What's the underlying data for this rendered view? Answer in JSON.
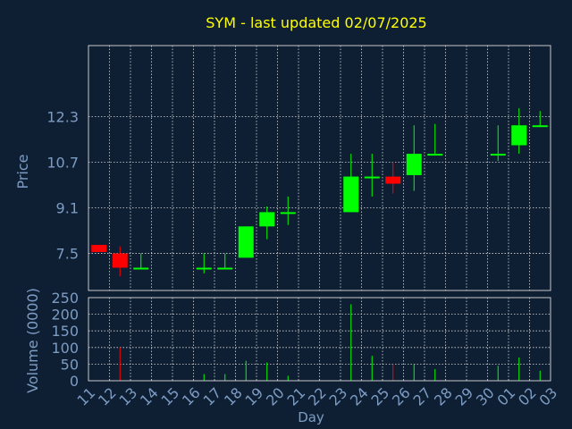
{
  "chart_data": {
    "type": "candlestick",
    "title": "SYM - last updated 02/07/2025",
    "xlabel": "Day",
    "price_ylabel": "Price",
    "volume_ylabel": "Volume (0000)",
    "price_ylim": [
      6.2,
      14.8
    ],
    "volume_ylim": [
      0,
      250
    ],
    "price_ticks": [
      "7.5",
      "9.1",
      "10.7",
      "12.3"
    ],
    "volume_ticks": [
      "0",
      "50",
      "100",
      "150",
      "200",
      "250"
    ],
    "x_labels": [
      "11",
      "12",
      "13",
      "14",
      "15",
      "16",
      "17",
      "18",
      "19",
      "20",
      "21",
      "22",
      "23",
      "24",
      "25",
      "26",
      "27",
      "28",
      "29",
      "30",
      "01",
      "02",
      "03"
    ],
    "grid": true,
    "colors": {
      "background": "#0e1f33",
      "title": "#ffff00",
      "axis_text": "#7d9cc4",
      "up": "#00ff00",
      "down": "#ff0000",
      "frame": "#c8c8c8",
      "grid": "#d9d9d9"
    },
    "candles": [
      {
        "day": 0,
        "open": 7.8,
        "close": 7.55,
        "high": 7.8,
        "low": 7.55
      },
      {
        "day": 1,
        "open": 7.5,
        "close": 7.0,
        "high": 7.75,
        "low": 6.7
      },
      {
        "day": 2,
        "open": 7.0,
        "close": 7.0,
        "high": 7.5,
        "low": 7.0
      },
      {
        "day": 5,
        "open": 7.0,
        "close": 7.0,
        "high": 7.5,
        "low": 6.8
      },
      {
        "day": 6,
        "open": 7.0,
        "close": 7.0,
        "high": 7.5,
        "low": 7.0
      },
      {
        "day": 7,
        "open": 7.35,
        "close": 8.45,
        "high": 8.45,
        "low": 7.35
      },
      {
        "day": 8,
        "open": 8.45,
        "close": 8.95,
        "high": 9.15,
        "low": 8.0
      },
      {
        "day": 9,
        "open": 8.95,
        "close": 8.95,
        "high": 9.5,
        "low": 8.5
      },
      {
        "day": 12,
        "open": 8.95,
        "close": 10.2,
        "high": 11.0,
        "low": 8.95
      },
      {
        "day": 13,
        "open": 10.2,
        "close": 10.2,
        "high": 11.0,
        "low": 9.5
      },
      {
        "day": 14,
        "open": 10.2,
        "close": 9.95,
        "high": 10.7,
        "low": 9.6
      },
      {
        "day": 15,
        "open": 10.25,
        "close": 11.0,
        "high": 12.0,
        "low": 9.7
      },
      {
        "day": 16,
        "open": 11.0,
        "close": 11.0,
        "high": 12.05,
        "low": 11.0
      },
      {
        "day": 19,
        "open": 11.0,
        "close": 11.0,
        "high": 12.0,
        "low": 10.75
      },
      {
        "day": 20,
        "open": 11.3,
        "close": 12.0,
        "high": 12.6,
        "low": 11.0
      },
      {
        "day": 21,
        "open": 12.0,
        "close": 12.0,
        "high": 12.5,
        "low": 11.95
      }
    ],
    "volume": [
      {
        "day": 1,
        "value": 100,
        "direction": "down"
      },
      {
        "day": 5,
        "value": 20,
        "direction": "up"
      },
      {
        "day": 6,
        "value": 20,
        "direction": "up"
      },
      {
        "day": 7,
        "value": 60,
        "direction": "up"
      },
      {
        "day": 8,
        "value": 55,
        "direction": "up"
      },
      {
        "day": 9,
        "value": 15,
        "direction": "up"
      },
      {
        "day": 12,
        "value": 230,
        "direction": "up"
      },
      {
        "day": 13,
        "value": 75,
        "direction": "up"
      },
      {
        "day": 14,
        "value": 50,
        "direction": "down"
      },
      {
        "day": 15,
        "value": 50,
        "direction": "up"
      },
      {
        "day": 16,
        "value": 35,
        "direction": "up"
      },
      {
        "day": 19,
        "value": 45,
        "direction": "up"
      },
      {
        "day": 20,
        "value": 70,
        "direction": "up"
      },
      {
        "day": 21,
        "value": 30,
        "direction": "up"
      }
    ]
  }
}
